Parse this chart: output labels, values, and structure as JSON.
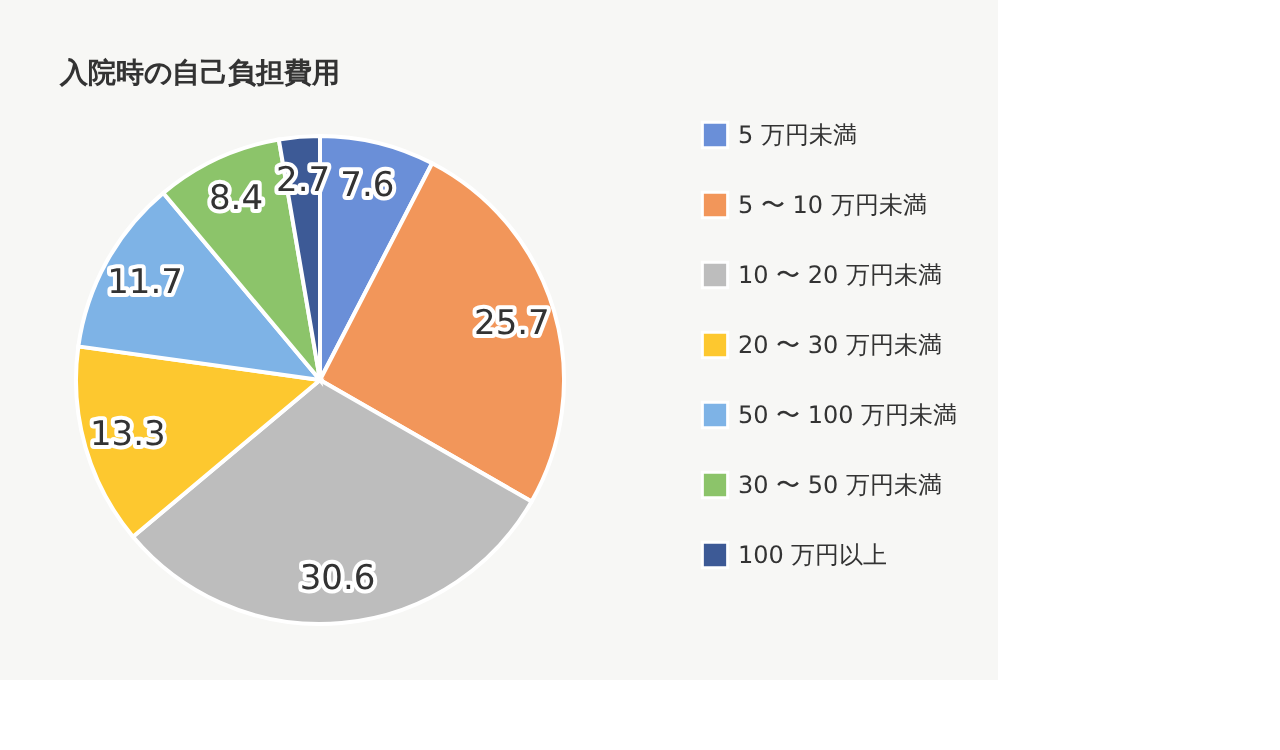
{
  "chart_data": {
    "type": "pie",
    "title": "入院時の自己負担費用",
    "categories": [
      "5 万円未満",
      "5 〜 10 万円未満",
      "10 〜 20 万円未満",
      "20 〜 30 万円未満",
      "50 〜 100 万円未満",
      "30 〜 50 万円未満",
      "100 万円以上"
    ],
    "values": [
      7.6,
      25.7,
      30.6,
      13.3,
      11.7,
      8.4,
      2.7
    ],
    "colors": [
      "#6a8fd8",
      "#f2965a",
      "#bdbdbd",
      "#fdc82f",
      "#7eb3e6",
      "#8cc46a",
      "#3d5a96"
    ],
    "data_labels": true,
    "legend": "right"
  }
}
